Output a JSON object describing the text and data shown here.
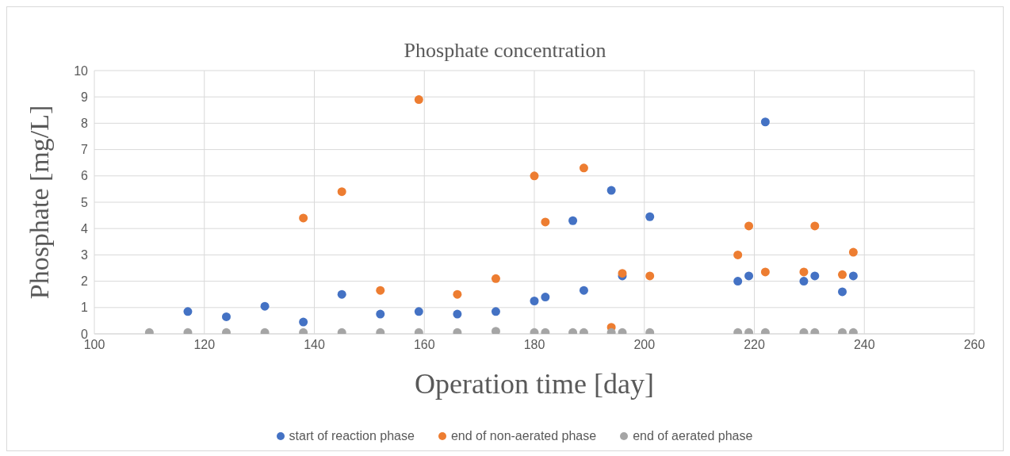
{
  "chart_data": {
    "type": "scatter",
    "title": "Phosphate concentration",
    "xlabel": "Operation time [day]",
    "ylabel": "Phosphate [mg/L]",
    "xlim": [
      100,
      260
    ],
    "xticks": [
      100,
      120,
      140,
      160,
      180,
      200,
      220,
      240,
      260
    ],
    "ylim": [
      0,
      10
    ],
    "yticks": [
      0,
      1,
      2,
      3,
      4,
      5,
      6,
      7,
      8,
      9,
      10
    ],
    "grid": true,
    "legend": "bottom",
    "marker": "circle",
    "series": [
      {
        "name": "start of reaction phase",
        "color": "#4472c4",
        "x": [
          117,
          124,
          131,
          138,
          145,
          152,
          159,
          166,
          173,
          180,
          182,
          187,
          189,
          194,
          196,
          201,
          217,
          219,
          222,
          229,
          231,
          236,
          238
        ],
        "values": [
          0.85,
          0.65,
          1.05,
          0.45,
          1.5,
          0.75,
          0.85,
          0.75,
          0.85,
          1.25,
          1.4,
          4.3,
          1.65,
          5.45,
          2.2,
          4.45,
          2.0,
          2.2,
          8.05,
          2.0,
          2.2,
          1.6,
          2.2
        ]
      },
      {
        "name": "end of non-aerated phase",
        "color": "#ed7d31",
        "x": [
          138,
          145,
          152,
          159,
          166,
          173,
          180,
          182,
          189,
          194,
          196,
          201,
          217,
          219,
          222,
          229,
          231,
          236,
          238
        ],
        "values": [
          4.4,
          5.4,
          1.65,
          8.9,
          1.5,
          2.1,
          6.0,
          4.25,
          6.3,
          0.25,
          2.3,
          2.2,
          3.0,
          4.1,
          2.35,
          2.35,
          4.1,
          2.25,
          3.1
        ]
      },
      {
        "name": "end of aerated phase",
        "color": "#a5a5a5",
        "x": [
          110,
          117,
          124,
          131,
          138,
          145,
          152,
          159,
          166,
          173,
          180,
          182,
          187,
          189,
          194,
          196,
          201,
          217,
          219,
          222,
          229,
          231,
          236,
          238
        ],
        "values": [
          0.05,
          0.05,
          0.05,
          0.05,
          0.05,
          0.05,
          0.05,
          0.05,
          0.05,
          0.1,
          0.05,
          0.05,
          0.05,
          0.05,
          0.05,
          0.05,
          0.05,
          0.05,
          0.05,
          0.05,
          0.05,
          0.05,
          0.05,
          0.05
        ]
      }
    ]
  }
}
